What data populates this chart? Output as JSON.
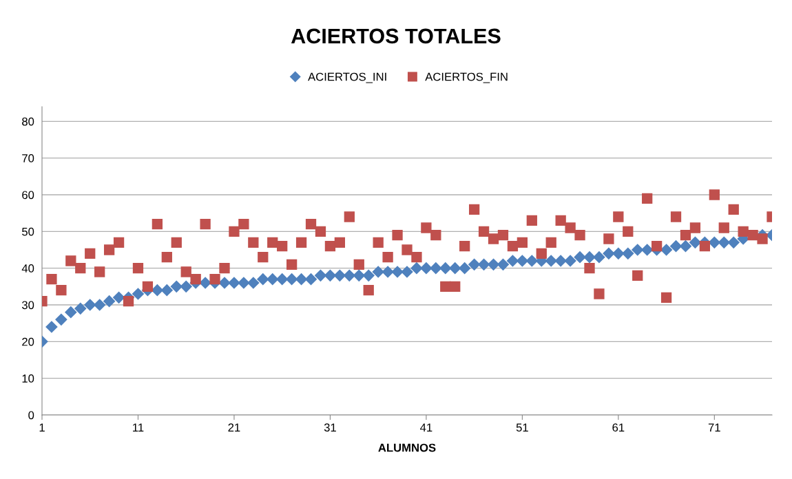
{
  "chart_data": {
    "type": "scatter",
    "title": "ACIERTOS TOTALES",
    "xlabel": "ALUMNOS",
    "x": [
      1,
      2,
      3,
      4,
      5,
      6,
      7,
      8,
      9,
      10,
      11,
      12,
      13,
      14,
      15,
      16,
      17,
      18,
      19,
      20,
      21,
      22,
      23,
      24,
      25,
      26,
      27,
      28,
      29,
      30,
      31,
      32,
      33,
      34,
      35,
      36,
      37,
      38,
      39,
      40,
      41,
      42,
      43,
      44,
      45,
      46,
      47,
      48,
      49,
      50,
      51,
      52,
      53,
      54,
      55,
      56,
      57,
      58,
      59,
      60,
      61,
      62,
      63,
      64,
      65,
      66,
      67,
      68,
      69,
      70,
      71,
      72,
      73,
      74,
      75,
      76,
      77
    ],
    "series": [
      {
        "name": "ACIERTOS_INI",
        "color": "#4f81bd",
        "marker": "diamond",
        "values": [
          20,
          24,
          26,
          28,
          29,
          30,
          30,
          31,
          32,
          32,
          33,
          34,
          34,
          34,
          35,
          35,
          36,
          36,
          36,
          36,
          36,
          36,
          36,
          37,
          37,
          37,
          37,
          37,
          37,
          38,
          38,
          38,
          38,
          38,
          38,
          39,
          39,
          39,
          39,
          40,
          40,
          40,
          40,
          40,
          40,
          41,
          41,
          41,
          41,
          42,
          42,
          42,
          42,
          42,
          42,
          42,
          43,
          43,
          43,
          44,
          44,
          44,
          45,
          45,
          45,
          45,
          46,
          46,
          47,
          47,
          47,
          47,
          47,
          48,
          null,
          49,
          49
        ]
      },
      {
        "name": "ACIERTOS_FIN",
        "color": "#c0504d",
        "marker": "square",
        "values": [
          31,
          37,
          34,
          42,
          40,
          44,
          39,
          45,
          47,
          31,
          40,
          35,
          52,
          43,
          47,
          39,
          37,
          52,
          37,
          40,
          50,
          52,
          47,
          43,
          47,
          46,
          41,
          47,
          52,
          50,
          46,
          47,
          54,
          41,
          34,
          47,
          43,
          49,
          45,
          43,
          51,
          49,
          35,
          35,
          46,
          56,
          50,
          48,
          49,
          46,
          47,
          53,
          44,
          47,
          53,
          51,
          49,
          40,
          33,
          48,
          54,
          50,
          38,
          59,
          46,
          32,
          54,
          49,
          51,
          46,
          60,
          51,
          56,
          50,
          49,
          48,
          54
        ]
      }
    ],
    "xlim": [
      1,
      77
    ],
    "xticks": [
      1,
      11,
      21,
      31,
      41,
      51,
      61,
      71
    ],
    "ylim": [
      0,
      84
    ],
    "yticks": [
      0,
      10,
      20,
      30,
      40,
      50,
      60,
      70,
      80
    ],
    "grid": "y",
    "legend": "top"
  }
}
